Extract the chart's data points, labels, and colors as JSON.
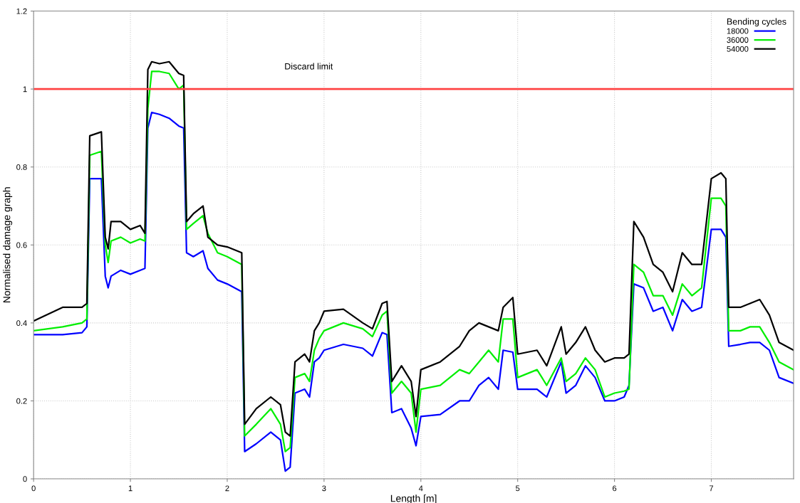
{
  "chart_data": {
    "type": "line",
    "xlabel": "Length [m]",
    "ylabel": "Normalised damage graph",
    "legend_title": "Bending cycles",
    "x": [
      0,
      0.3,
      0.5,
      0.55,
      0.58,
      0.7,
      0.74,
      0.77,
      0.8,
      0.9,
      1.0,
      1.1,
      1.15,
      1.18,
      1.22,
      1.3,
      1.4,
      1.5,
      1.55,
      1.58,
      1.65,
      1.75,
      1.8,
      1.9,
      2.0,
      2.15,
      2.18,
      2.3,
      2.45,
      2.55,
      2.6,
      2.65,
      2.7,
      2.8,
      2.85,
      2.9,
      2.95,
      3.0,
      3.2,
      3.4,
      3.5,
      3.6,
      3.65,
      3.7,
      3.8,
      3.9,
      3.95,
      4.0,
      4.2,
      4.4,
      4.5,
      4.6,
      4.7,
      4.8,
      4.85,
      4.95,
      5.0,
      5.2,
      5.3,
      5.45,
      5.5,
      5.6,
      5.7,
      5.8,
      5.9,
      6.0,
      6.1,
      6.15,
      6.2,
      6.3,
      6.4,
      6.5,
      6.6,
      6.7,
      6.8,
      6.9,
      7.0,
      7.1,
      7.15,
      7.18,
      7.3,
      7.4,
      7.5,
      7.6,
      7.7,
      7.85
    ],
    "series": [
      {
        "name": "18000",
        "color": "#0000ff",
        "values": [
          0.37,
          0.37,
          0.375,
          0.39,
          0.77,
          0.77,
          0.52,
          0.49,
          0.52,
          0.535,
          0.525,
          0.535,
          0.54,
          0.9,
          0.94,
          0.935,
          0.925,
          0.905,
          0.9,
          0.58,
          0.57,
          0.585,
          0.54,
          0.51,
          0.5,
          0.48,
          0.07,
          0.09,
          0.12,
          0.1,
          0.02,
          0.03,
          0.22,
          0.23,
          0.21,
          0.3,
          0.31,
          0.33,
          0.345,
          0.335,
          0.315,
          0.375,
          0.37,
          0.17,
          0.18,
          0.13,
          0.085,
          0.16,
          0.165,
          0.2,
          0.2,
          0.24,
          0.26,
          0.23,
          0.33,
          0.325,
          0.23,
          0.23,
          0.21,
          0.3,
          0.22,
          0.24,
          0.29,
          0.26,
          0.2,
          0.2,
          0.21,
          0.24,
          0.5,
          0.49,
          0.43,
          0.44,
          0.38,
          0.46,
          0.43,
          0.44,
          0.64,
          0.64,
          0.62,
          0.34,
          0.345,
          0.35,
          0.35,
          0.33,
          0.26,
          0.245
        ]
      },
      {
        "name": "36000",
        "color": "#00ee00",
        "values": [
          0.38,
          0.39,
          0.4,
          0.41,
          0.83,
          0.84,
          0.6,
          0.555,
          0.61,
          0.62,
          0.605,
          0.615,
          0.61,
          0.95,
          1.045,
          1.045,
          1.04,
          1.0,
          1.01,
          0.64,
          0.655,
          0.675,
          0.63,
          0.58,
          0.57,
          0.55,
          0.11,
          0.14,
          0.18,
          0.14,
          0.07,
          0.08,
          0.26,
          0.27,
          0.25,
          0.33,
          0.36,
          0.38,
          0.4,
          0.385,
          0.365,
          0.42,
          0.43,
          0.22,
          0.25,
          0.22,
          0.12,
          0.23,
          0.24,
          0.28,
          0.27,
          0.3,
          0.33,
          0.3,
          0.41,
          0.41,
          0.26,
          0.28,
          0.24,
          0.31,
          0.25,
          0.27,
          0.31,
          0.28,
          0.21,
          0.22,
          0.225,
          0.23,
          0.55,
          0.53,
          0.47,
          0.47,
          0.42,
          0.5,
          0.47,
          0.49,
          0.72,
          0.72,
          0.7,
          0.38,
          0.38,
          0.39,
          0.39,
          0.35,
          0.3,
          0.28
        ]
      },
      {
        "name": "54000",
        "color": "#000000",
        "values": [
          0.405,
          0.44,
          0.44,
          0.45,
          0.88,
          0.89,
          0.62,
          0.59,
          0.66,
          0.66,
          0.64,
          0.65,
          0.63,
          1.05,
          1.07,
          1.065,
          1.07,
          1.04,
          1.035,
          0.66,
          0.68,
          0.7,
          0.62,
          0.6,
          0.595,
          0.58,
          0.14,
          0.18,
          0.21,
          0.19,
          0.12,
          0.11,
          0.3,
          0.32,
          0.3,
          0.38,
          0.4,
          0.43,
          0.435,
          0.4,
          0.385,
          0.45,
          0.455,
          0.25,
          0.29,
          0.25,
          0.16,
          0.28,
          0.3,
          0.34,
          0.38,
          0.4,
          0.39,
          0.38,
          0.44,
          0.465,
          0.32,
          0.33,
          0.29,
          0.39,
          0.32,
          0.35,
          0.39,
          0.33,
          0.3,
          0.31,
          0.31,
          0.32,
          0.66,
          0.62,
          0.55,
          0.53,
          0.48,
          0.58,
          0.55,
          0.55,
          0.77,
          0.785,
          0.77,
          0.44,
          0.44,
          0.45,
          0.46,
          0.42,
          0.35,
          0.33
        ]
      }
    ],
    "ref_lines": [
      {
        "axis": "y",
        "value": 1,
        "label": "Discard limit",
        "color": "#ff4444",
        "line_style": "solid"
      }
    ],
    "xlim": [
      0,
      7.85
    ],
    "ylim": [
      0,
      1.2
    ],
    "xticks": [
      0,
      1,
      2,
      3,
      4,
      5,
      6,
      7
    ],
    "yticks": [
      0,
      0.2,
      0.4,
      0.6,
      0.8,
      1,
      1.2
    ],
    "grid": true,
    "legend": "top right",
    "line_style": "solid",
    "marker": "none"
  }
}
